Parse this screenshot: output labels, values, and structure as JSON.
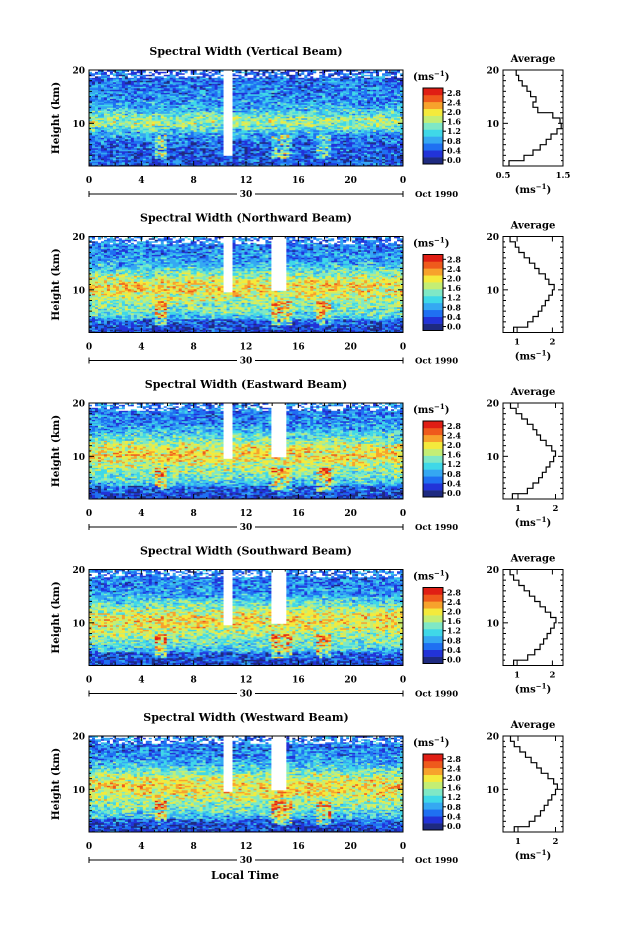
{
  "figure": {
    "xlabel": "Local Time",
    "date_label": "Oct 1990",
    "day_label": "30",
    "colorbar_unit": "(ms",
    "colorbar_unit_exp": "−1",
    "colorbar_unit_close": ")",
    "colorbar_ticks": [
      "0.0",
      "0.4",
      "0.8",
      "1.2",
      "1.6",
      "2.0",
      "2.4",
      "2.8"
    ],
    "colormap": [
      "#ffffff",
      "#1e2a80",
      "#2233d8",
      "#1f70f2",
      "#35a8f2",
      "#3fd8e8",
      "#7fe8c6",
      "#c4ee74",
      "#f4ea3c",
      "#f7a22c",
      "#ef5a1c",
      "#e01e14"
    ]
  },
  "chart_data": [
    {
      "type": "heatmap",
      "title": "Spectral Width (Vertical Beam)",
      "ylabel": "Height (km)",
      "x_ticks": [
        "0",
        "4",
        "8",
        "12",
        "16",
        "20",
        "0"
      ],
      "y_ticks": [
        "10",
        "20"
      ],
      "xlim": [
        0,
        24
      ],
      "ylim": [
        2,
        20
      ],
      "avg": {
        "title": "Average",
        "xlabel": "(ms",
        "x_ticks": [
          "0.5",
          "1.5"
        ],
        "x_tick_vals": [
          0.5,
          1.5
        ],
        "xlim": [
          0.5,
          1.5
        ],
        "y_ticks": [
          "10",
          "20"
        ],
        "heights": [
          2.5,
          3.5,
          4.5,
          5.5,
          6.5,
          7.5,
          8.5,
          9.5,
          10.5,
          11.5,
          12.5,
          13.5,
          14.5,
          15.5,
          16.5,
          17.5,
          18.5,
          19.5
        ],
        "values": [
          0.6,
          0.85,
          1.0,
          1.12,
          1.22,
          1.3,
          1.4,
          1.47,
          1.45,
          1.33,
          1.08,
          1.0,
          1.05,
          0.96,
          0.9,
          0.82,
          0.76,
          0.72
        ]
      }
    },
    {
      "type": "heatmap",
      "title": "Spectral Width (Northward Beam)",
      "ylabel": "Height (km)",
      "x_ticks": [
        "0",
        "4",
        "8",
        "12",
        "16",
        "20",
        "0"
      ],
      "y_ticks": [
        "10",
        "20"
      ],
      "xlim": [
        0,
        24
      ],
      "ylim": [
        2,
        20
      ],
      "avg": {
        "title": "Average",
        "xlabel": "(ms",
        "x_ticks": [
          "1",
          "2"
        ],
        "x_tick_vals": [
          1,
          2
        ],
        "xlim": [
          0.6,
          2.3
        ],
        "y_ticks": [
          "10",
          "20"
        ],
        "heights": [
          2.5,
          3.5,
          4.5,
          5.5,
          6.5,
          7.5,
          8.5,
          9.5,
          10.5,
          11.5,
          12.5,
          13.5,
          14.5,
          15.5,
          16.5,
          17.5,
          18.5,
          19.5
        ],
        "values": [
          0.9,
          1.3,
          1.45,
          1.6,
          1.7,
          1.8,
          1.9,
          2.0,
          2.05,
          1.9,
          1.8,
          1.62,
          1.5,
          1.35,
          1.2,
          1.05,
          0.95,
          0.8
        ]
      }
    },
    {
      "type": "heatmap",
      "title": "Spectral Width (Eastward Beam)",
      "ylabel": "Height (km)",
      "x_ticks": [
        "0",
        "4",
        "8",
        "12",
        "16",
        "20",
        "0"
      ],
      "y_ticks": [
        "10",
        "20"
      ],
      "xlim": [
        0,
        24
      ],
      "ylim": [
        2,
        20
      ],
      "avg": {
        "title": "Average",
        "xlabel": "(ms",
        "x_ticks": [
          "1",
          "2"
        ],
        "x_tick_vals": [
          1,
          2
        ],
        "xlim": [
          0.6,
          2.2
        ],
        "y_ticks": [
          "10",
          "20"
        ],
        "heights": [
          2.5,
          3.5,
          4.5,
          5.5,
          6.5,
          7.5,
          8.5,
          9.5,
          10.5,
          11.5,
          12.5,
          13.5,
          14.5,
          15.5,
          16.5,
          17.5,
          18.5,
          19.5
        ],
        "values": [
          0.85,
          1.25,
          1.4,
          1.55,
          1.65,
          1.75,
          1.85,
          1.95,
          2.0,
          1.9,
          1.75,
          1.6,
          1.5,
          1.4,
          1.25,
          1.1,
          0.95,
          0.8
        ]
      }
    },
    {
      "type": "heatmap",
      "title": "Spectral Width (Southward Beam)",
      "ylabel": "Height (km)",
      "x_ticks": [
        "0",
        "4",
        "8",
        "12",
        "16",
        "20",
        "0"
      ],
      "y_ticks": [
        "10",
        "20"
      ],
      "xlim": [
        0,
        24
      ],
      "ylim": [
        2,
        20
      ],
      "avg": {
        "title": "Average",
        "xlabel": "(ms",
        "x_ticks": [
          "1",
          "2"
        ],
        "x_tick_vals": [
          1,
          2
        ],
        "xlim": [
          0.6,
          2.3
        ],
        "y_ticks": [
          "10",
          "20"
        ],
        "heights": [
          2.5,
          3.5,
          4.5,
          5.5,
          6.5,
          7.5,
          8.5,
          9.5,
          10.5,
          11.5,
          12.5,
          13.5,
          14.5,
          15.5,
          16.5,
          17.5,
          18.5,
          19.5
        ],
        "values": [
          0.9,
          1.3,
          1.5,
          1.65,
          1.75,
          1.85,
          1.95,
          2.05,
          2.1,
          1.95,
          1.8,
          1.65,
          1.5,
          1.35,
          1.2,
          1.05,
          0.9,
          0.8
        ]
      }
    },
    {
      "type": "heatmap",
      "title": "Spectral Width (Westward Beam)",
      "ylabel": "Height (km)",
      "x_ticks": [
        "0",
        "4",
        "8",
        "12",
        "16",
        "20",
        "0"
      ],
      "y_ticks": [
        "10",
        "20"
      ],
      "xlim": [
        0,
        24
      ],
      "ylim": [
        2,
        20
      ],
      "avg": {
        "title": "Average",
        "xlabel": "(ms",
        "x_ticks": [
          "1",
          "2"
        ],
        "x_tick_vals": [
          1,
          2
        ],
        "xlim": [
          0.6,
          2.2
        ],
        "y_ticks": [
          "10",
          "20"
        ],
        "heights": [
          2.5,
          3.5,
          4.5,
          5.5,
          6.5,
          7.5,
          8.5,
          9.5,
          10.5,
          11.5,
          12.5,
          13.5,
          14.5,
          15.5,
          16.5,
          17.5,
          18.5,
          19.5
        ],
        "values": [
          0.9,
          1.3,
          1.45,
          1.6,
          1.7,
          1.8,
          1.9,
          2.0,
          2.05,
          1.95,
          1.8,
          1.62,
          1.5,
          1.35,
          1.2,
          1.05,
          0.9,
          0.8
        ]
      }
    }
  ]
}
